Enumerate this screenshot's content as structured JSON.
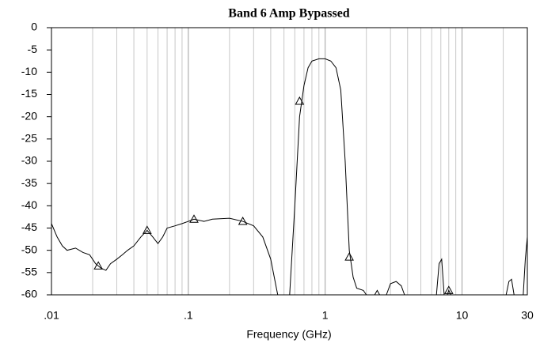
{
  "chart_data": {
    "type": "line",
    "title": "Band 6 Amp Bypassed",
    "x_label": "Frequency (GHz)",
    "log_x": true,
    "grid": true,
    "xlim": [
      0.01,
      30
    ],
    "ylim": [
      -60,
      0
    ],
    "xticks": [
      {
        "value": 0.01,
        "label": ".01"
      },
      {
        "value": 0.1,
        "label": ".1"
      },
      1,
      10,
      30
    ],
    "xminorticks": [
      0.02,
      0.03,
      0.04,
      0.05,
      0.06,
      0.07,
      0.08,
      0.09,
      0.2,
      0.3,
      0.4,
      0.5,
      0.6,
      0.7,
      0.8,
      0.9,
      2,
      3,
      4,
      5,
      6,
      7,
      8,
      9,
      20
    ],
    "yticks": [
      0,
      -5,
      -10,
      -15,
      -20,
      -25,
      -30,
      -35,
      -40,
      -45,
      -50,
      -55,
      -60
    ],
    "series": [
      {
        "color": "#000000",
        "x": [
          0.01,
          0.011,
          0.012,
          0.013,
          0.015,
          0.017,
          0.019,
          0.021,
          0.023,
          0.025,
          0.027,
          0.03,
          0.033,
          0.036,
          0.04,
          0.045,
          0.05,
          0.055,
          0.06,
          0.065,
          0.07,
          0.08,
          0.09,
          0.1,
          0.11,
          0.13,
          0.15,
          0.2,
          0.25,
          0.3,
          0.35,
          0.4,
          0.45,
          0.5,
          0.55,
          0.6,
          0.65,
          0.7,
          0.75,
          0.8,
          0.9,
          1.0,
          1.1,
          1.2,
          1.3,
          1.4,
          1.5,
          1.6,
          1.7,
          1.9,
          2.0,
          2.15,
          2.3,
          2.4,
          2.5,
          2.65,
          2.8,
          3.0,
          3.3,
          3.6,
          3.8,
          5.0,
          6.5,
          6.8,
          7.1,
          7.4,
          7.6,
          7.8,
          8.0,
          8.3,
          15,
          21,
          22,
          23,
          24,
          26,
          28,
          29,
          30
        ],
        "values": [
          -44,
          -47,
          -49,
          -50,
          -49.5,
          -50.5,
          -51,
          -53,
          -54,
          -54.5,
          -53,
          -52,
          -51,
          -50,
          -49,
          -47,
          -45.5,
          -47,
          -48.5,
          -47,
          -45,
          -44.5,
          -44,
          -43.5,
          -43,
          -43.5,
          -43,
          -42.8,
          -43.5,
          -44.5,
          -47,
          -52,
          -60,
          null,
          -60,
          -40,
          -20,
          -13,
          -9,
          -7.5,
          -7,
          -7,
          -7.5,
          -9,
          -14,
          -30,
          -50,
          -56,
          -58.5,
          -59,
          -60,
          null,
          -60,
          -59,
          -60,
          null,
          -60,
          -57.5,
          -57,
          -58,
          -60,
          null,
          -60,
          -53,
          -52,
          -60,
          null,
          -60,
          -59,
          -60,
          null,
          -60,
          -57,
          -56.5,
          -60,
          null,
          -60,
          -52,
          -47
        ]
      }
    ],
    "markers": {
      "x": [
        0.022,
        0.05,
        0.11,
        0.25,
        0.65,
        1.5,
        8
      ],
      "values": [
        -53.5,
        -45.5,
        -43,
        -43.5,
        -16.5,
        -51.5,
        -59
      ]
    }
  }
}
